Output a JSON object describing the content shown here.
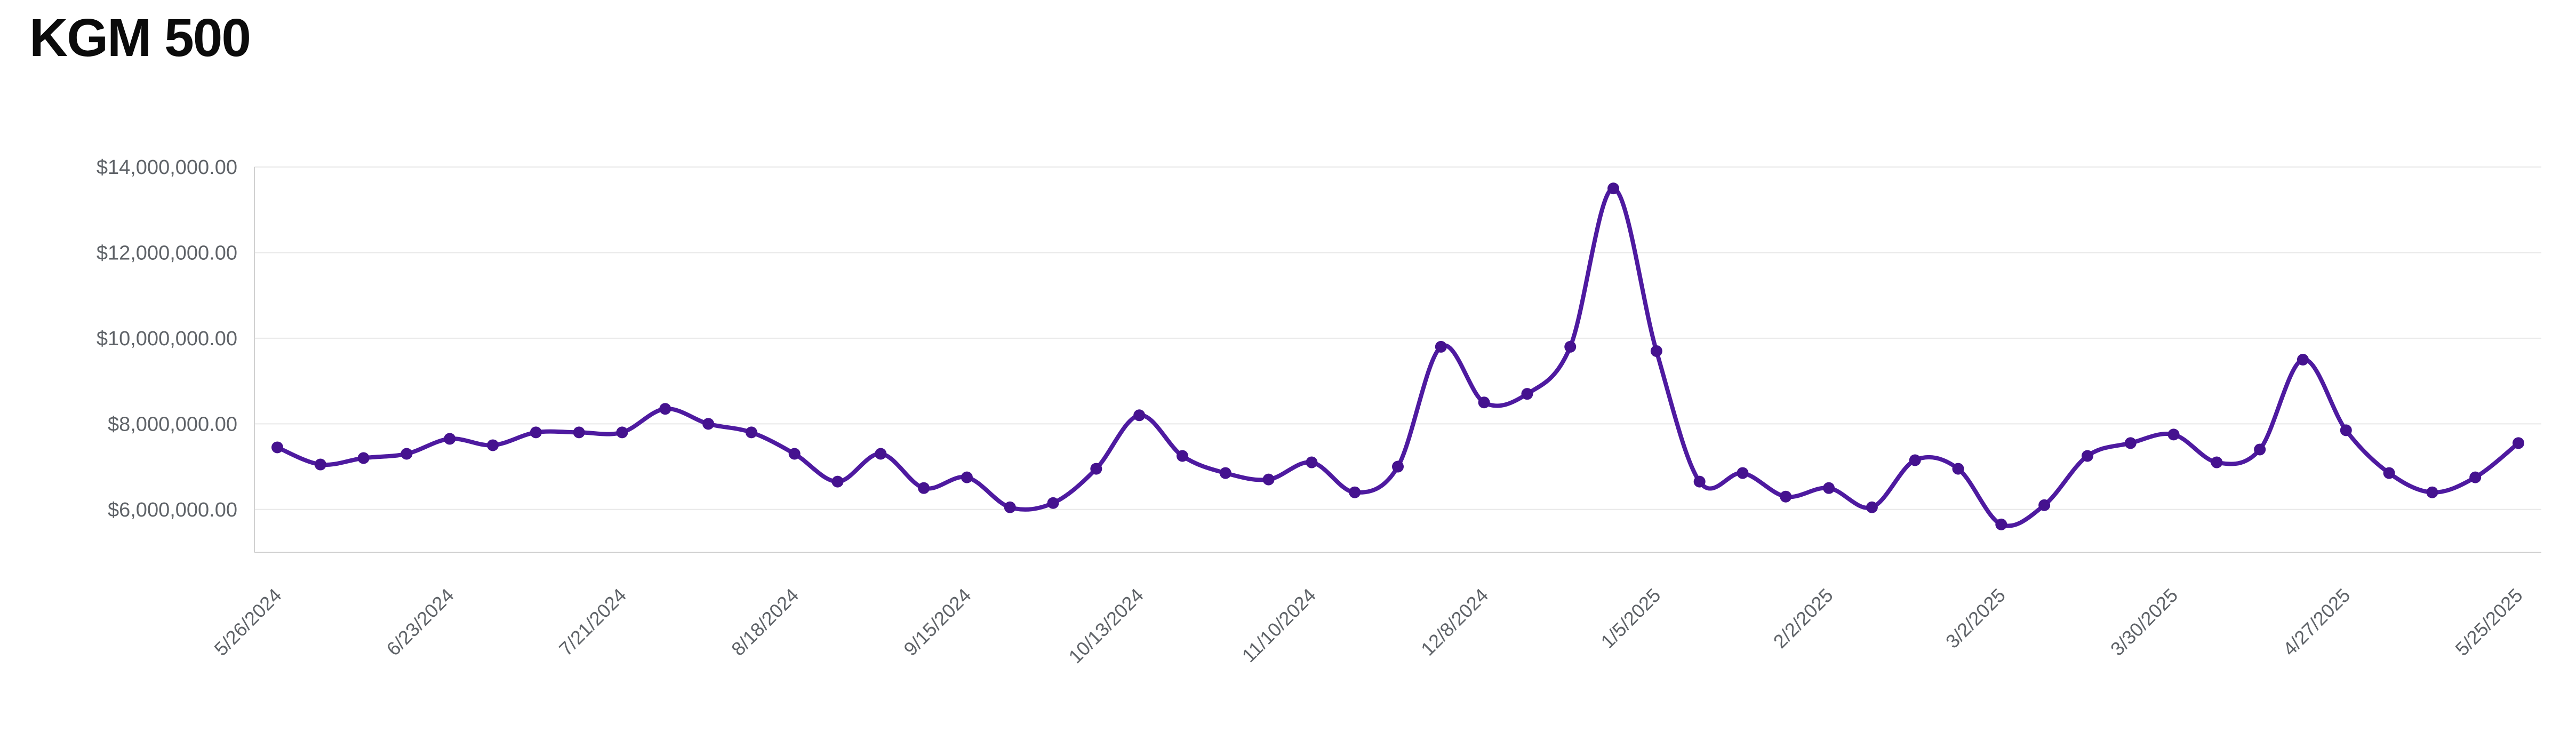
{
  "page": {
    "title": "KGM 500"
  },
  "chart_data": {
    "type": "line",
    "title": "KGM 500",
    "xlabel": "",
    "ylabel": "",
    "smooth": true,
    "grid": "horizontal-only",
    "legend_position": "none",
    "line_color": "#4e1aa0",
    "point_color": "#45128f",
    "ylim": [
      5000000,
      14000000
    ],
    "y_tick_values": [
      6000000,
      8000000,
      10000000,
      12000000,
      14000000
    ],
    "y_tick_labels": [
      "$6,000,000.00",
      "$8,000,000.00",
      "$10,000,000.00",
      "$12,000,000.00",
      "$14,000,000.00"
    ],
    "x_labeled_every": 4,
    "x": [
      "5/26/2024",
      "6/2/2024",
      "6/9/2024",
      "6/16/2024",
      "6/23/2024",
      "6/30/2024",
      "7/7/2024",
      "7/14/2024",
      "7/21/2024",
      "7/28/2024",
      "8/4/2024",
      "8/11/2024",
      "8/18/2024",
      "8/25/2024",
      "9/1/2024",
      "9/8/2024",
      "9/15/2024",
      "9/22/2024",
      "9/29/2024",
      "10/6/2024",
      "10/13/2024",
      "10/20/2024",
      "10/27/2024",
      "11/3/2024",
      "11/10/2024",
      "11/17/2024",
      "11/24/2024",
      "12/1/2024",
      "12/8/2024",
      "12/15/2024",
      "12/22/2024",
      "12/29/2024",
      "1/5/2025",
      "1/12/2025",
      "1/19/2025",
      "1/26/2025",
      "2/2/2025",
      "2/9/2025",
      "2/16/2025",
      "2/23/2025",
      "3/2/2025",
      "3/9/2025",
      "3/16/2025",
      "3/23/2025",
      "3/30/2025",
      "4/6/2025",
      "4/13/2025",
      "4/20/2025",
      "4/27/2025",
      "5/4/2025",
      "5/11/2025",
      "5/18/2025",
      "5/25/2025"
    ],
    "x_tick_labels": [
      "5/26/2024",
      "6/23/2024",
      "7/21/2024",
      "8/18/2024",
      "9/15/2024",
      "10/13/2024",
      "11/10/2024",
      "12/8/2024",
      "1/5/2025",
      "2/2/2025",
      "3/2/2025",
      "3/30/2025",
      "4/27/2025",
      "5/25/2025"
    ],
    "values": [
      7450000,
      7050000,
      7200000,
      7300000,
      7650000,
      7500000,
      7800000,
      7800000,
      7800000,
      8350000,
      8000000,
      7800000,
      7300000,
      6650000,
      7300000,
      6500000,
      6750000,
      6050000,
      6150000,
      6950000,
      8200000,
      7250000,
      6850000,
      6700000,
      7100000,
      6400000,
      7000000,
      9800000,
      8500000,
      8700000,
      9800000,
      13500000,
      9700000,
      6650000,
      6850000,
      6300000,
      6500000,
      6050000,
      7150000,
      6950000,
      5650000,
      6100000,
      7250000,
      7550000,
      7750000,
      7100000,
      7400000,
      9500000,
      7850000,
      6850000,
      6400000,
      6750000,
      7550000
    ]
  }
}
